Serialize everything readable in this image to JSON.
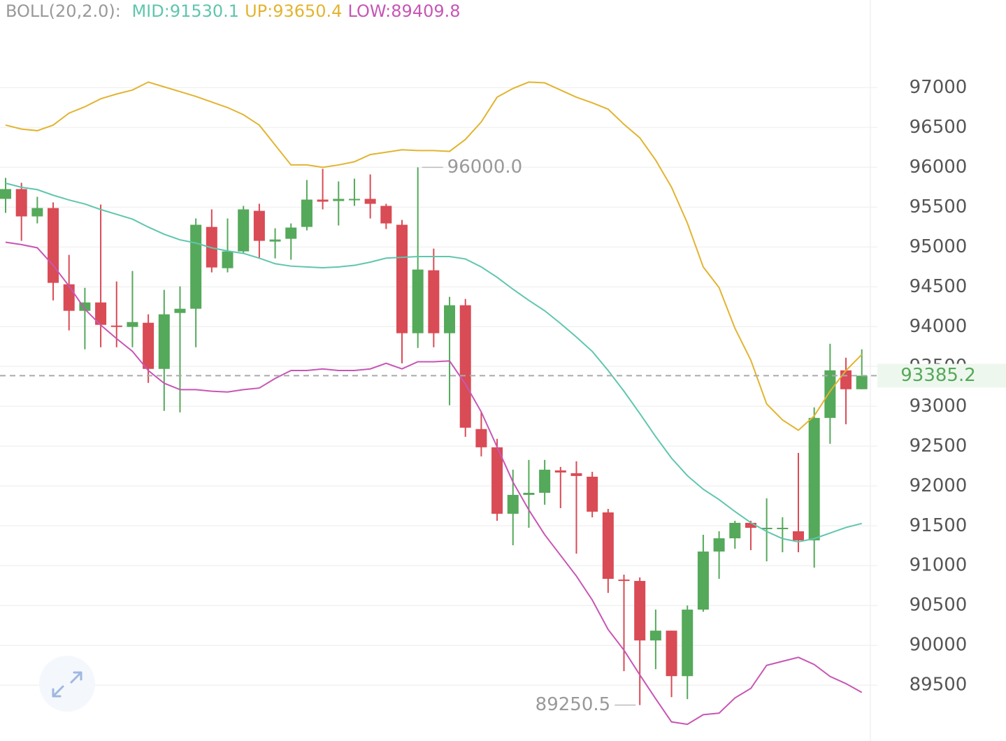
{
  "chart_data": {
    "type": "candlestick",
    "title": "BOLL(20,2.0):",
    "open": [
      95604,
      95727,
      95384,
      95489,
      94532,
      94199,
      94304,
      94014,
      93997,
      94049,
      93470,
      94172,
      94225,
      95252,
      94734,
      94945,
      95454,
      95068,
      95103,
      95252,
      95595,
      95577,
      95604,
      95604,
      95516,
      95279,
      93918,
      94708,
      93918,
      94269,
      92715,
      92486,
      91652,
      91889,
      91915,
      92196,
      92161,
      92117,
      91669,
      90826,
      90809,
      90062,
      90185,
      89614,
      90449,
      91178,
      91344,
      91538,
      91476,
      91476,
      91432,
      91318,
      92855,
      93452,
      93215
    ],
    "high": [
      95867,
      95806,
      95630,
      95560,
      94901,
      94488,
      95533,
      94567,
      94699,
      94155,
      94462,
      94506,
      95358,
      95472,
      95358,
      95516,
      95542,
      95235,
      95296,
      95841,
      95981,
      95823,
      95858,
      95911,
      95542,
      95340,
      96000,
      94980,
      94374,
      94348,
      92925,
      92592,
      92205,
      92328,
      92328,
      92240,
      92310,
      92179,
      91713,
      90888,
      90853,
      90449,
      90185,
      90501,
      91388,
      91432,
      91564,
      91564,
      91845,
      91608,
      92416,
      92987,
      93786,
      93610,
      93716
    ],
    "low": [
      95428,
      95077,
      95296,
      94330,
      93953,
      93716,
      93742,
      93742,
      93742,
      93294,
      92943,
      92925,
      93742,
      94682,
      94682,
      94927,
      94857,
      94857,
      94840,
      95208,
      95472,
      95270,
      95516,
      95358,
      95226,
      93540,
      93733,
      93742,
      93013,
      92618,
      92372,
      91564,
      91257,
      91476,
      91766,
      91722,
      91151,
      91608,
      90659,
      89676,
      89250.5,
      89702,
      89351,
      89325,
      90422,
      90835,
      91213,
      91195,
      91055,
      91169,
      91169,
      90976,
      92530,
      92776,
      93215
    ],
    "close": [
      95727,
      95384,
      95489,
      94550,
      94199,
      94304,
      94023,
      93997,
      94058,
      93470,
      94155,
      94225,
      95279,
      94743,
      94945,
      95472,
      95077,
      95094,
      95244,
      95595,
      95569,
      95604,
      95604,
      95542,
      95296,
      93918,
      94717,
      93918,
      94269,
      92732,
      92486,
      91652,
      91889,
      91915,
      92205,
      92170,
      92126,
      91678,
      90835,
      90809,
      90062,
      90185,
      89614,
      90449,
      91178,
      91344,
      91538,
      91476,
      91476,
      91476,
      91318,
      92855,
      93452,
      93215,
      93385.2
    ],
    "up_color": "#55a95a",
    "down_color": "#d94b55",
    "series": [
      {
        "name": "MID:",
        "color": "#5fc6ad",
        "values": [
          95800,
          95750,
          95720,
          95650,
          95590,
          95540,
          95470,
          95410,
          95350,
          95250,
          95160,
          95090,
          95050,
          94990,
          94950,
          94920,
          94860,
          94790,
          94760,
          94750,
          94740,
          94750,
          94770,
          94810,
          94860,
          94870,
          94880,
          94880,
          94880,
          94850,
          94750,
          94620,
          94470,
          94330,
          94200,
          94040,
          93870,
          93690,
          93450,
          93190,
          92910,
          92620,
          92350,
          92130,
          91960,
          91830,
          91680,
          91540,
          91430,
          91340,
          91300,
          91340,
          91410,
          91480,
          91530.1
        ]
      },
      {
        "name": "UP:",
        "color": "#e2b430",
        "values": [
          96530,
          96480,
          96460,
          96530,
          96680,
          96760,
          96860,
          96920,
          96970,
          97070,
          97010,
          96950,
          96890,
          96820,
          96750,
          96660,
          96530,
          96280,
          96030,
          96030,
          96000,
          96030,
          96070,
          96160,
          96190,
          96220,
          96210,
          96210,
          96200,
          96350,
          96570,
          96880,
          96990,
          97070,
          97060,
          96970,
          96880,
          96810,
          96730,
          96540,
          96370,
          96090,
          95750,
          95300,
          94750,
          94490,
          93980,
          93580,
          93030,
          92830,
          92700,
          92880,
          93190,
          93450,
          93650.4
        ]
      },
      {
        "name": "LOW:",
        "color": "#c756b4",
        "values": [
          95060,
          95030,
          94990,
          94770,
          94510,
          94220,
          94020,
          93850,
          93690,
          93450,
          93290,
          93210,
          93210,
          93190,
          93180,
          93210,
          93230,
          93350,
          93450,
          93450,
          93470,
          93450,
          93450,
          93470,
          93540,
          93470,
          93560,
          93560,
          93570,
          93280,
          92930,
          92490,
          92050,
          91700,
          91390,
          91130,
          90870,
          90570,
          90200,
          89940,
          89630,
          89330,
          89040,
          89010,
          89130,
          89150,
          89340,
          89460,
          89750,
          89800,
          89850,
          89760,
          89610,
          89520,
          89409.8
        ]
      }
    ],
    "annotations": [
      {
        "value": 96000,
        "label": "96000.0"
      },
      {
        "value": 89250.5,
        "label": "89250.5"
      }
    ],
    "ylim": [
      88800,
      98100
    ],
    "yticks": [
      89500,
      90000,
      90500,
      91000,
      91500,
      92000,
      92500,
      93000,
      93500,
      94000,
      94500,
      95000,
      95500,
      96000,
      96500,
      97000
    ],
    "grid": true
  }
}
